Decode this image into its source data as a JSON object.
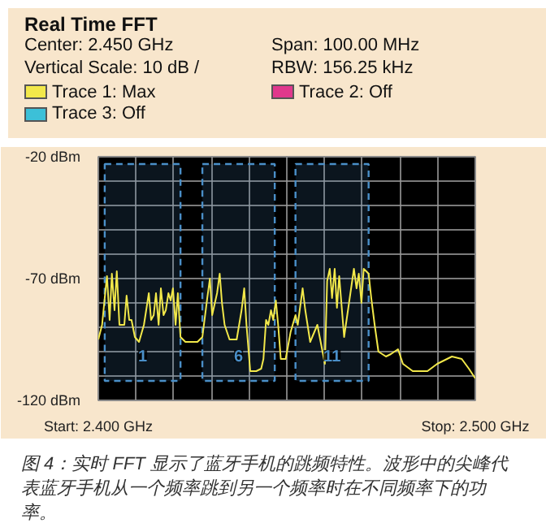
{
  "chart_data": {
    "type": "line",
    "title": "Real Time FFT",
    "annotations": [
      "Center: 2.450 GHz",
      "Span: 100.00 MHz",
      "Vertical Scale: 10 dB /",
      "RBW: 156.25 kHz",
      "图 4：实时 FFT 显示了蓝牙手机的跳频特性。波形中的尖峰代表蓝牙手机从一个频率跳到另一个频率时在不同频率下的功率。"
    ],
    "xlim": [
      2.4,
      2.5
    ],
    "ylim": [
      -120,
      -20
    ],
    "xticks": [
      {
        "value": 2.4,
        "label": "Start: 2.400 GHz"
      },
      {
        "value": 2.41,
        "label": null
      },
      {
        "value": 2.42,
        "label": null
      },
      {
        "value": 2.43,
        "label": null
      },
      {
        "value": 2.44,
        "label": null
      },
      {
        "value": 2.45,
        "label": null
      },
      {
        "value": 2.46,
        "label": null
      },
      {
        "value": 2.47,
        "label": null
      },
      {
        "value": 2.48,
        "label": null
      },
      {
        "value": 2.49,
        "label": null
      },
      {
        "value": 2.5,
        "label": "Stop: 2.500 GHz"
      }
    ],
    "yticks": [
      {
        "value": -20,
        "label": "-20 dBm"
      },
      {
        "value": -30,
        "label": null
      },
      {
        "value": -40,
        "label": null
      },
      {
        "value": -50,
        "label": null
      },
      {
        "value": -60,
        "label": null
      },
      {
        "value": -70,
        "label": "-70 dBm"
      },
      {
        "value": -80,
        "label": null
      },
      {
        "value": -90,
        "label": null
      },
      {
        "value": -100,
        "label": null
      },
      {
        "value": -110,
        "label": null
      },
      {
        "value": -120,
        "label": "-120 dBm"
      }
    ],
    "grid": true,
    "legend": "top",
    "marker": "none",
    "line_style": "solid",
    "bands": [
      {
        "axis": "x",
        "from": 2.4017,
        "to": 2.4218,
        "label": "1",
        "color": "#4a8fc8"
      },
      {
        "axis": "x",
        "from": 2.4276,
        "to": 2.4468,
        "label": "6",
        "color": "#4a8fc8"
      },
      {
        "axis": "x",
        "from": 2.4523,
        "to": 2.4717,
        "label": "11",
        "color": "#4a8fc8"
      }
    ],
    "series": [
      {
        "name": "Trace 1: Max",
        "color": "#f2e84a",
        "x": [
          2.4,
          2.401,
          2.4017,
          2.4023,
          2.403,
          2.4036,
          2.4043,
          2.4049,
          2.4056,
          2.4069,
          2.4075,
          2.4082,
          2.4088,
          2.4097,
          2.4108,
          2.4121,
          2.4134,
          2.414,
          2.4147,
          2.4153,
          2.416,
          2.4166,
          2.4173,
          2.4179,
          2.4186,
          2.4192,
          2.4198,
          2.4205,
          2.4211,
          2.4218,
          2.4231,
          2.4263,
          2.4276,
          2.4289,
          2.4296,
          2.4302,
          2.4315,
          2.4322,
          2.4328,
          2.4335,
          2.4348,
          2.4367,
          2.438,
          2.4387,
          2.4393,
          2.4403,
          2.4419,
          2.4432,
          2.4438,
          2.4445,
          2.4451,
          2.4458,
          2.4464,
          2.4471,
          2.4477,
          2.4484,
          2.4497,
          2.451,
          2.4523,
          2.4529,
          2.4542,
          2.4549,
          2.4562,
          2.4581,
          2.4601,
          2.4607,
          2.4614,
          2.462,
          2.4627,
          2.4633,
          2.4639,
          2.4652,
          2.4665,
          2.4678,
          2.4685,
          2.4691,
          2.4698,
          2.4704,
          2.4717,
          2.4724,
          2.4733,
          2.4743,
          2.4763,
          2.4776,
          2.4795,
          2.4808,
          2.4834,
          2.4873,
          2.4899,
          2.4938,
          2.4964,
          2.4983,
          2.5
        ],
        "values": [
          -95,
          -89,
          -78,
          -69,
          -87,
          -68,
          -83,
          -67,
          -89,
          -89,
          -77,
          -87,
          -87,
          -94,
          -96,
          -89,
          -76,
          -87,
          -85,
          -76,
          -89,
          -74,
          -85,
          -83,
          -76,
          -79,
          -74,
          -89,
          -76,
          -94,
          -96,
          -96,
          -94,
          -78,
          -70,
          -85,
          -76,
          -68,
          -80,
          -89,
          -95,
          -95,
          -83,
          -74,
          -89,
          -108,
          -108,
          -107,
          -103,
          -87,
          -89,
          -83,
          -87,
          -79,
          -89,
          -103,
          -103,
          -92,
          -85,
          -89,
          -74,
          -83,
          -96,
          -89,
          -105,
          -71,
          -66,
          -78,
          -66,
          -82,
          -69,
          -94,
          -80,
          -66,
          -74,
          -68,
          -80,
          -66,
          -68,
          -78,
          -89,
          -100,
          -102,
          -101,
          -99,
          -105,
          -108,
          -108,
          -105,
          -102,
          -103,
          -107,
          -111
        ]
      },
      {
        "name": "Trace 2: Off",
        "color": "#e0388c"
      },
      {
        "name": "Trace 3: Off",
        "color": "#3cc0d8"
      }
    ]
  }
}
